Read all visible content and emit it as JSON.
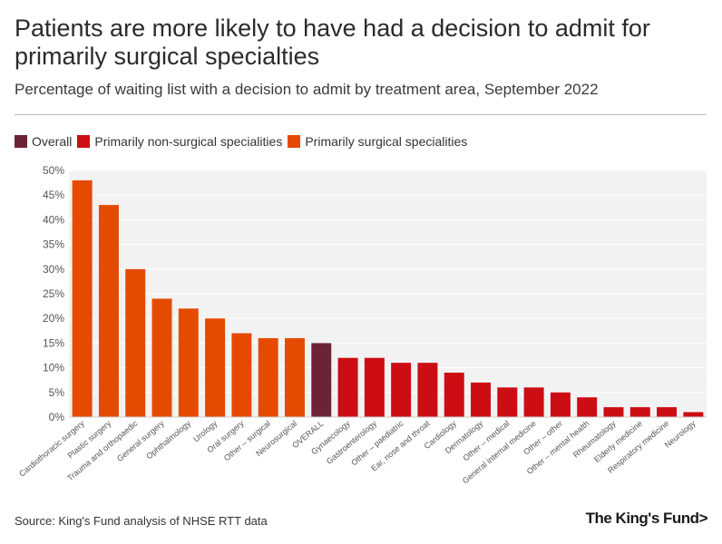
{
  "header": {
    "title": "Patients are more likely to have had a decision to admit for primarily surgical specialties",
    "subtitle": "Percentage of waiting list with a decision to admit by treatment area, September 2022"
  },
  "legend": [
    {
      "label": "Overall",
      "color": "#6d2336"
    },
    {
      "label": "Primarily non-surgical specialities",
      "color": "#cc0d13"
    },
    {
      "label": "Primarily surgical specialities",
      "color": "#e44b00"
    }
  ],
  "footer": {
    "source": "Source: King's Fund analysis of NHSE RTT data",
    "logo": "The King's Fund>"
  },
  "chart_data": {
    "type": "bar",
    "title": "Percentage of waiting list with a decision to admit by treatment area, September 2022",
    "xlabel": "",
    "ylabel": "",
    "ylim": [
      0,
      50
    ],
    "yticks": [
      "0%",
      "5%",
      "10%",
      "15%",
      "20%",
      "25%",
      "30%",
      "35%",
      "40%",
      "45%",
      "50%"
    ],
    "grid": true,
    "categories": [
      "Cardiothoracic surgery",
      "Plastic surgery",
      "Trauma and orthopaedic",
      "General surgery",
      "Ophthalmology",
      "Urology",
      "Oral surgery",
      "Other – surgical",
      "Neurosurgical",
      "OVERALL",
      "Gynaecology",
      "Gastroenterology",
      "Other – paediatric",
      "Ear, nose and throat",
      "Cardiology",
      "Dermatology",
      "Other – medical",
      "General internal medicine",
      "Other – other",
      "Other – mental health",
      "Rheumatology",
      "Elderly medicine",
      "Respiratory medicine",
      "Neurology"
    ],
    "values": [
      48,
      43,
      30,
      24,
      22,
      20,
      17,
      16,
      16,
      15,
      12,
      12,
      11,
      11,
      9,
      7,
      6,
      6,
      5,
      4,
      2,
      2,
      2,
      1
    ],
    "groups": [
      "surgical",
      "surgical",
      "surgical",
      "surgical",
      "surgical",
      "surgical",
      "surgical",
      "surgical",
      "surgical",
      "overall",
      "non-surgical",
      "non-surgical",
      "non-surgical",
      "non-surgical",
      "non-surgical",
      "non-surgical",
      "non-surgical",
      "non-surgical",
      "non-surgical",
      "non-surgical",
      "non-surgical",
      "non-surgical",
      "non-surgical",
      "non-surgical"
    ],
    "colors": {
      "surgical": "#e44b00",
      "non-surgical": "#cc0d13",
      "overall": "#6d2336"
    }
  }
}
